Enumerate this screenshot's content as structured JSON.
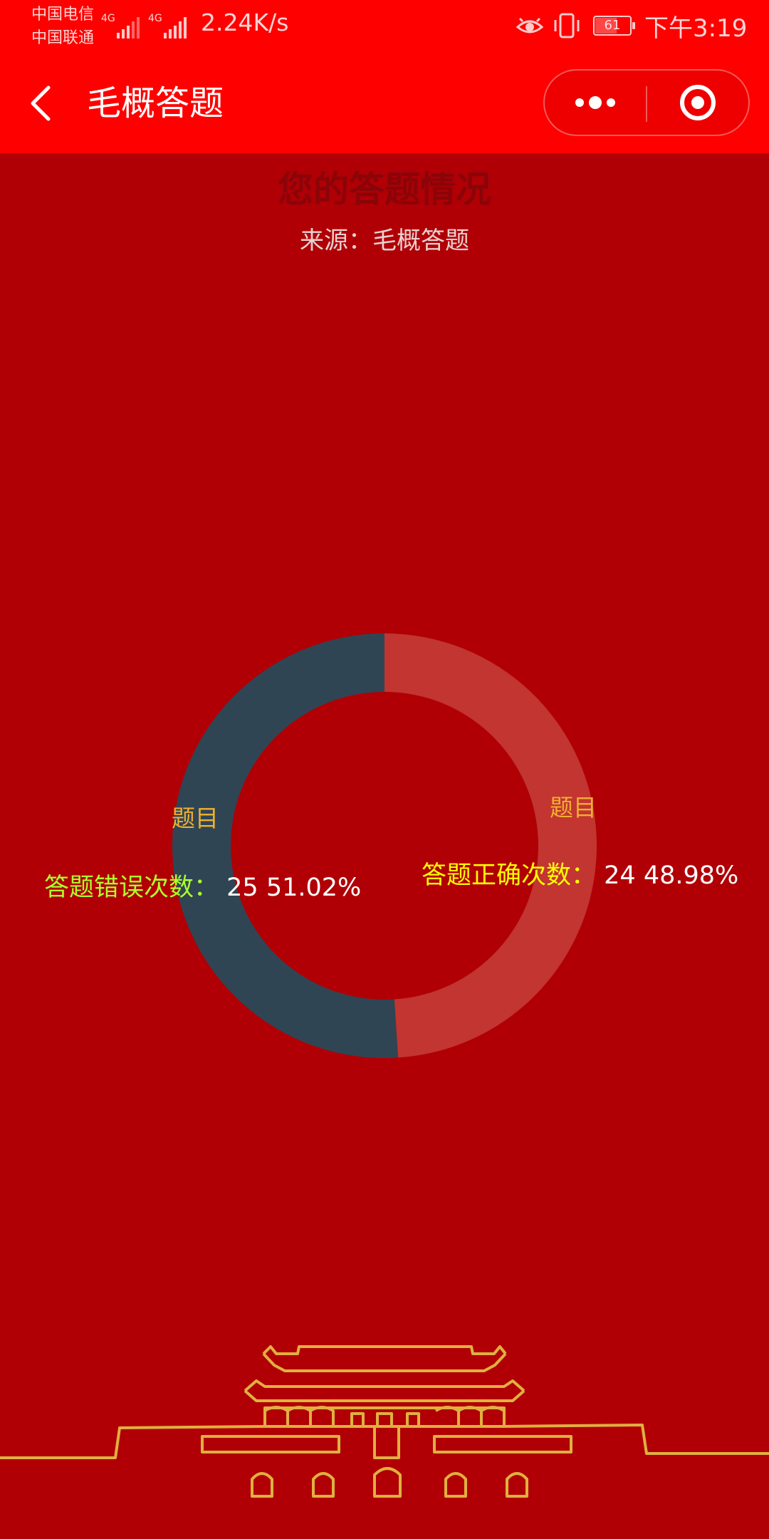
{
  "status_bar": {
    "carrier_1": "中国电信",
    "carrier_2": "中国联通",
    "net_1": "4G",
    "net_2": "4G",
    "speed": "2.24K/s",
    "battery": "61",
    "time": "下午3:19"
  },
  "nav": {
    "title": "毛概答题"
  },
  "chart_data": {
    "type": "pie",
    "title": "您的答题情况",
    "subtitle": "来源：毛概答题",
    "slices": [
      {
        "name": "答题正确次数",
        "value": 24,
        "percent": "48.98%",
        "category_label": "题目",
        "color": "#c23531",
        "label_color": "#ffff00"
      },
      {
        "name": "答题错误次数",
        "value": 25,
        "percent": "51.02%",
        "category_label": "题目",
        "color": "#2f4554",
        "label_color": "#adff2f"
      }
    ]
  },
  "colors": {
    "status_bar": "#fe0000",
    "background": "#b00005",
    "decor_gold": "#e0b040"
  }
}
